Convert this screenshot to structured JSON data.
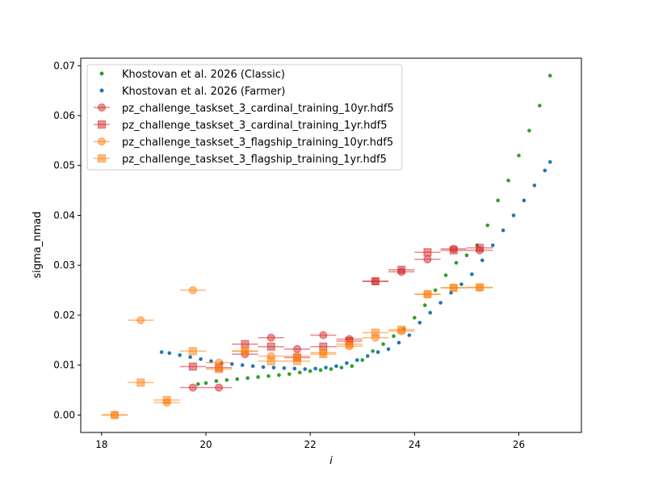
{
  "chart_data": {
    "type": "scatter",
    "xlabel": "i",
    "ylabel": "sigma_nmad",
    "xlim": [
      17.6,
      27.2
    ],
    "ylim": [
      -0.0035,
      0.0715
    ],
    "xticks": [
      18,
      20,
      22,
      24,
      26
    ],
    "yticks": [
      0.0,
      0.01,
      0.02,
      0.03,
      0.04,
      0.05,
      0.06,
      0.07
    ],
    "xtick_labels": [
      "18",
      "20",
      "22",
      "24",
      "26"
    ],
    "ytick_labels": [
      "0.00",
      "0.01",
      "0.02",
      "0.03",
      "0.04",
      "0.05",
      "0.06",
      "0.07"
    ],
    "grid": false,
    "legend_position": "upper-left",
    "series": [
      {
        "name": "Khostovan et al. 2026 (Classic)",
        "kind": "dots",
        "color": "#2ca02c",
        "x": [
          19.85,
          20.0,
          20.2,
          20.4,
          20.6,
          20.8,
          21.0,
          21.2,
          21.4,
          21.6,
          21.8,
          22.0,
          22.2,
          22.4,
          22.6,
          22.8,
          23.0,
          23.2,
          23.4,
          23.6,
          23.8,
          24.0,
          24.2,
          24.4,
          24.6,
          24.8,
          25.0,
          25.2,
          25.4,
          25.6,
          25.8,
          26.0,
          26.2,
          26.4,
          26.6
        ],
        "y": [
          0.0062,
          0.0064,
          0.0068,
          0.007,
          0.0072,
          0.0074,
          0.0076,
          0.0078,
          0.008,
          0.0082,
          0.0085,
          0.0088,
          0.009,
          0.0092,
          0.0095,
          0.0098,
          0.011,
          0.0128,
          0.0142,
          0.0158,
          0.0172,
          0.0195,
          0.022,
          0.025,
          0.028,
          0.0305,
          0.032,
          0.034,
          0.038,
          0.043,
          0.047,
          0.052,
          0.057,
          0.062,
          0.068
        ]
      },
      {
        "name": "Khostovan et al. 2026 (Farmer)",
        "kind": "dots",
        "color": "#1f77b4",
        "x": [
          19.15,
          19.3,
          19.5,
          19.7,
          19.9,
          20.1,
          20.3,
          20.5,
          20.7,
          20.9,
          21.1,
          21.3,
          21.5,
          21.7,
          21.9,
          22.1,
          22.3,
          22.5,
          22.7,
          22.9,
          23.1,
          23.3,
          23.5,
          23.7,
          23.9,
          24.1,
          24.3,
          24.5,
          24.7,
          24.9,
          25.1,
          25.3,
          25.5,
          25.7,
          25.9,
          26.1,
          26.3,
          26.5,
          26.6
        ],
        "y": [
          0.0126,
          0.0124,
          0.012,
          0.0116,
          0.0112,
          0.0108,
          0.0104,
          0.0102,
          0.01,
          0.0098,
          0.0096,
          0.0095,
          0.0094,
          0.0093,
          0.0092,
          0.0093,
          0.0095,
          0.0098,
          0.0104,
          0.011,
          0.0118,
          0.0126,
          0.0132,
          0.0145,
          0.016,
          0.0185,
          0.0205,
          0.0225,
          0.0245,
          0.0262,
          0.0282,
          0.031,
          0.034,
          0.037,
          0.04,
          0.043,
          0.046,
          0.049,
          0.0507
        ]
      },
      {
        "name": "pz_challenge_taskset_3_cardinal_training_10yr.hdf5",
        "kind": "errorbar",
        "marker": "circle",
        "color": "#d62728",
        "xerr": 0.25,
        "x": [
          19.75,
          20.25,
          20.75,
          21.25,
          21.75,
          22.25,
          22.75,
          23.25,
          23.75,
          24.25,
          24.75,
          25.25
        ],
        "y": [
          0.0055,
          0.0055,
          0.0122,
          0.0155,
          0.0132,
          0.016,
          0.0152,
          0.0268,
          0.0287,
          0.0312,
          0.0333,
          0.033
        ]
      },
      {
        "name": "pz_challenge_taskset_3_cardinal_training_1yr.hdf5",
        "kind": "errorbar",
        "marker": "square",
        "color": "#d62728",
        "xerr": 0.25,
        "x": [
          19.75,
          20.25,
          20.75,
          21.25,
          21.75,
          22.25,
          22.75,
          23.25,
          23.75,
          24.25,
          24.75,
          25.25
        ],
        "y": [
          0.0097,
          0.0095,
          0.0142,
          0.0137,
          0.0115,
          0.0137,
          0.0148,
          0.0268,
          0.0291,
          0.0326,
          0.033,
          0.0335
        ]
      },
      {
        "name": "pz_challenge_taskset_3_flagship_training_10yr.hdf5",
        "kind": "errorbar",
        "marker": "circle",
        "color": "#ff7f0e",
        "xerr": 0.25,
        "x": [
          18.25,
          18.75,
          19.25,
          19.75,
          20.25,
          20.75,
          21.25,
          21.75,
          22.25,
          22.75,
          23.25,
          23.75,
          24.25,
          24.75,
          25.25
        ],
        "y": [
          0.0,
          0.019,
          0.0025,
          0.025,
          0.0105,
          0.0128,
          0.0118,
          0.0118,
          0.0125,
          0.0138,
          0.0155,
          0.0168,
          0.0242,
          0.0255,
          0.0255
        ]
      },
      {
        "name": "pz_challenge_taskset_3_flagship_training_1yr.hdf5",
        "kind": "errorbar",
        "marker": "square",
        "color": "#ff7f0e",
        "xerr": 0.25,
        "x": [
          18.25,
          18.75,
          19.25,
          19.75,
          20.25,
          20.75,
          21.25,
          21.75,
          22.25,
          22.75,
          23.25,
          23.75,
          24.25,
          24.75,
          25.25
        ],
        "y": [
          0.0,
          0.0065,
          0.003,
          0.0128,
          0.0092,
          0.0128,
          0.0108,
          0.0108,
          0.0122,
          0.0142,
          0.0165,
          0.0171,
          0.0242,
          0.0255,
          0.0256
        ]
      }
    ]
  }
}
